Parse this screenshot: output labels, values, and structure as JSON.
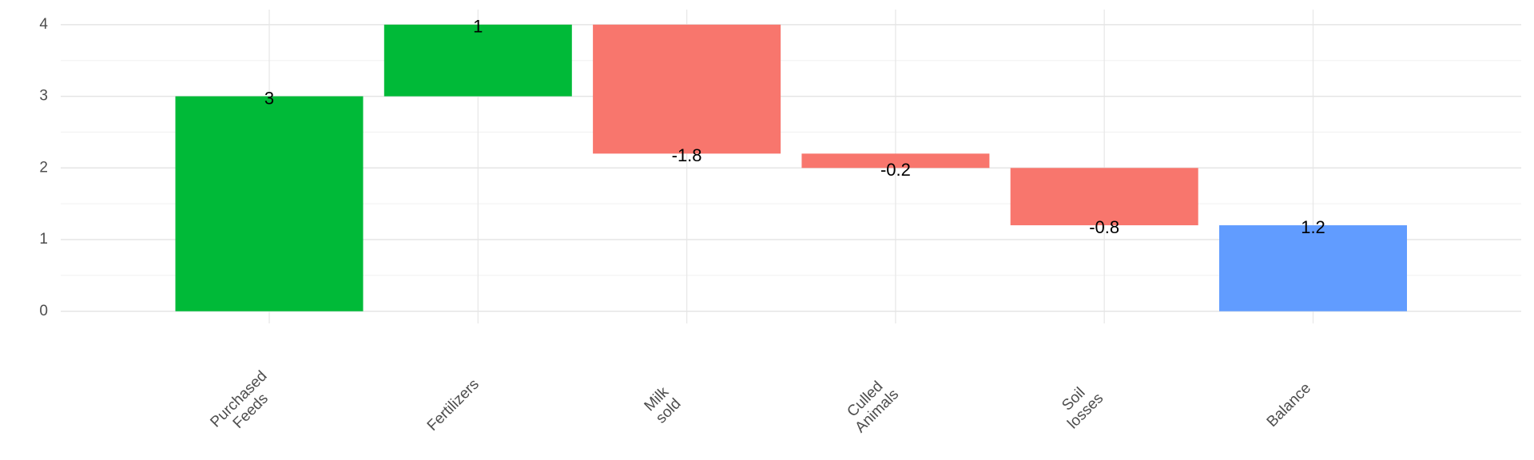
{
  "chart_data": {
    "type": "waterfall",
    "categories": [
      "Purchased\nFeeds",
      "Fertilizers",
      "Milk\nsold",
      "Culled\nAnimals",
      "Soil\nlosses",
      "Balance"
    ],
    "values": [
      3,
      1,
      -1.8,
      -0.2,
      -0.8,
      1.2
    ],
    "colors": [
      "#00ba38",
      "#00ba38",
      "#f8766d",
      "#f8766d",
      "#f8766d",
      "#619cff"
    ],
    "ylim": [
      -0.17,
      4.21
    ],
    "yticks": [
      0,
      1,
      2,
      3,
      4
    ],
    "grid": true
  }
}
